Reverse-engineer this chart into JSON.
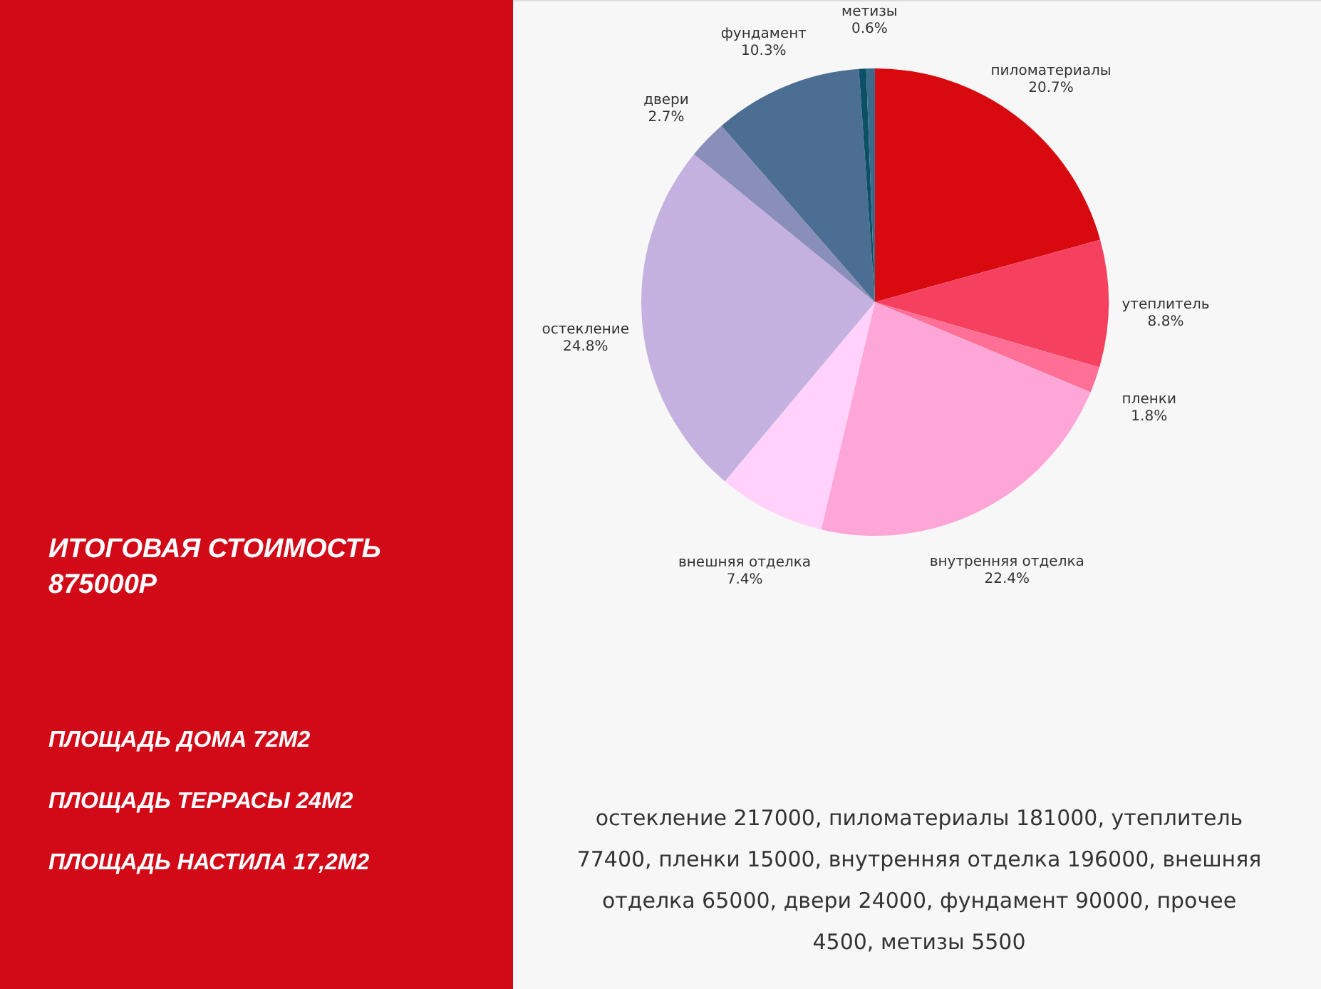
{
  "chart_data": {
    "type": "pie",
    "categories": [
      "пиломатериалы",
      "утеплитель",
      "пленки",
      "внутренняя отделка",
      "внешняя отделка",
      "остекление",
      "двери",
      "фундамент",
      null,
      "метизы"
    ],
    "values": [
      20.7,
      8.8,
      1.8,
      22.4,
      7.4,
      24.8,
      2.7,
      10.3,
      0.5,
      0.6
    ],
    "value_labels": [
      "20.7%",
      "8.8%",
      "1.8%",
      "22.4%",
      "7.4%",
      "24.8%",
      "2.7%",
      "10.3%",
      null,
      "0.6%"
    ],
    "colors": [
      "#d80a0f",
      "#f5415f",
      "#ff6f96",
      "#ffa6d8",
      "#ffd1fb",
      "#c4b1e0",
      "#8a8fba",
      "#4c6e92",
      "#0b5065",
      "#3b6b8a"
    ],
    "annotations": [
      "ИТОГОВАЯ СТОИМОСТЬ 875000Р",
      "ПЛОЩАДЬ ДОМА 72М2",
      "ПЛОЩАДЬ ТЕРРАСЫ 24М2",
      "ПЛОЩАДЬ НАСТИЛА 17,2М2",
      "остекление 217000, пиломатериалы 181000, утеплитель 77400, пленки 15000, внутренняя отделка 196000, внешняя отделка 65000, двери 24000, фундамент 90000, прочее 4500, метизы 5500"
    ]
  }
}
